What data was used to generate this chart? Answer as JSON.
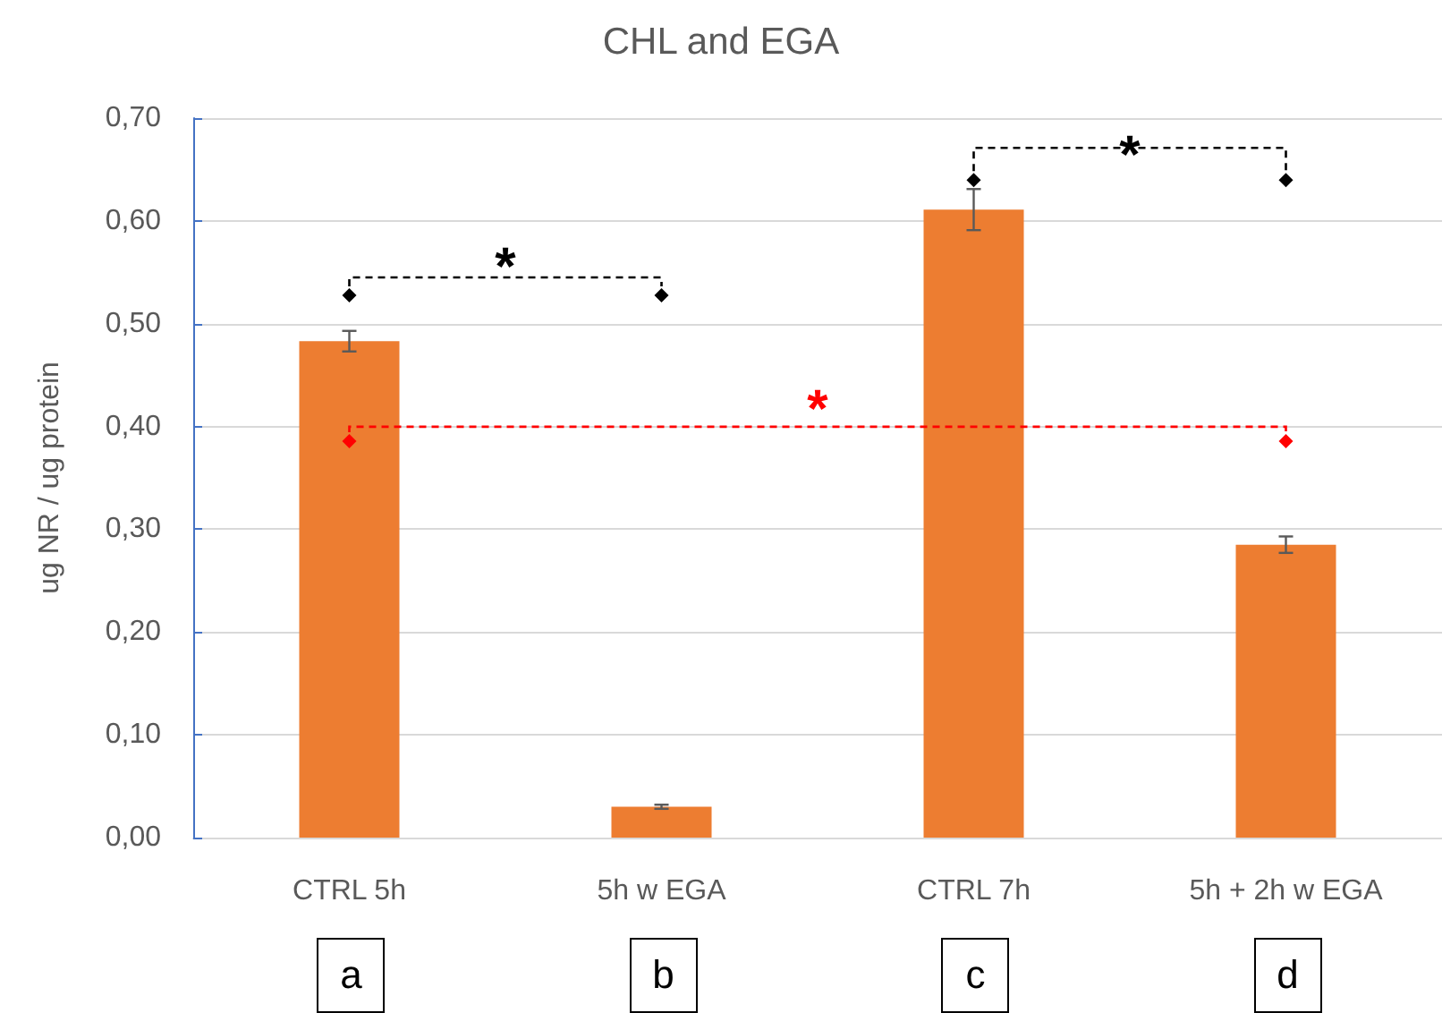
{
  "chart_data": {
    "type": "bar",
    "title": "CHL and EGA",
    "ylabel": "ug NR / ug protein",
    "categories": [
      "CTRL 5h",
      "5h w EGA",
      "CTRL 7h",
      "5h + 2h w EGA"
    ],
    "values": [
      0.483,
      0.03,
      0.611,
      0.285
    ],
    "errors": [
      0.01,
      0.002,
      0.02,
      0.008
    ],
    "color": "#ed7d31",
    "ylim": [
      0,
      0.7
    ],
    "yticks": [
      {
        "value": 0,
        "label": "0,00"
      },
      {
        "value": 0.1,
        "label": "0,10"
      },
      {
        "value": 0.2,
        "label": "0,20"
      },
      {
        "value": 0.3,
        "label": "0,30"
      },
      {
        "value": 0.4,
        "label": "0,40"
      },
      {
        "value": 0.5,
        "label": "0,50"
      },
      {
        "value": 0.6,
        "label": "0,60"
      },
      {
        "value": 0.7,
        "label": "0,70"
      }
    ],
    "grid": "y",
    "annotations": [
      "*",
      "*",
      "*",
      "a",
      "b",
      "c",
      "d"
    ]
  }
}
